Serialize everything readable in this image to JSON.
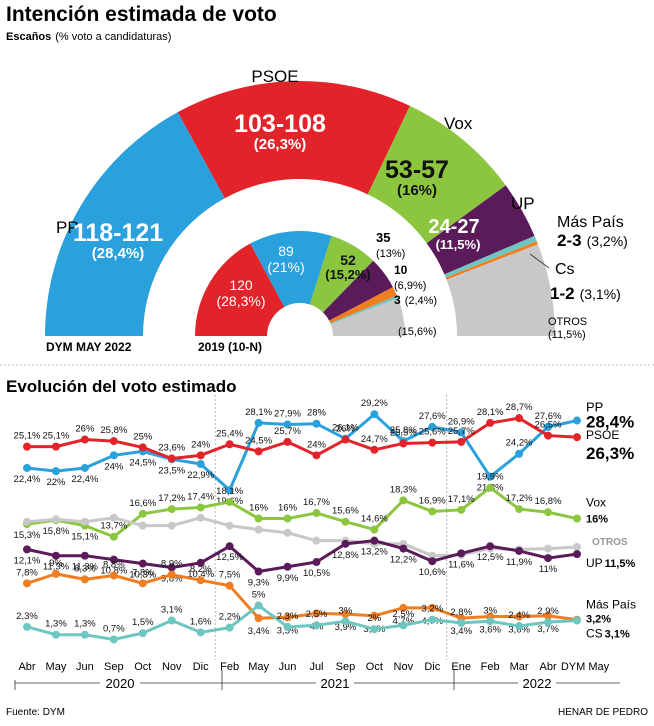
{
  "header": {
    "title": "Intención estimada de voto",
    "subtitle_bold": "Escaños",
    "subtitle_rest": "(% voto a candidaturas)"
  },
  "colors": {
    "PP": "#2aa0dc",
    "PSOE": "#e3232a",
    "Vox": "#8cc63f",
    "UP": "#5b1a5a",
    "MasPais": "#6ec6c1",
    "Cs": "#ef7d22",
    "OTROS": "#c8c8c8"
  },
  "chart_data": [
    {
      "type": "pie",
      "title": "DYM MAY 2022",
      "subtitle": "Escaños (% voto a candidaturas)",
      "series": [
        {
          "party": "PP",
          "seats_label": "118-121",
          "seats_mid": 119.5,
          "pct_label": "(28,4%)",
          "name_label": "PP"
        },
        {
          "party": "PSOE",
          "seats_label": "103-108",
          "seats_mid": 105.5,
          "pct_label": "(26,3%)",
          "name_label": "PSOE"
        },
        {
          "party": "Vox",
          "seats_label": "53-57",
          "seats_mid": 55,
          "pct_label": "(16%)",
          "name_label": "Vox"
        },
        {
          "party": "UP",
          "seats_label": "24-27",
          "seats_mid": 25.5,
          "pct_label": "(11,5%)",
          "name_label": "UP"
        },
        {
          "party": "MasPais",
          "seats_label": "2-3",
          "seats_mid": 2.5,
          "pct_label": "(3,2%)",
          "name_label": "Más País"
        },
        {
          "party": "Cs",
          "seats_label": "1-2",
          "seats_mid": 1.5,
          "pct_label": "(3,1%)",
          "name_label": "Cs"
        },
        {
          "party": "OTROS",
          "seats_label": "",
          "seats_mid": 41,
          "pct_label": "(11,5%)",
          "name_label": "OTROS"
        }
      ]
    },
    {
      "type": "pie",
      "title": "2019 (10-N)",
      "series": [
        {
          "party": "PSOE",
          "seats_label": "120",
          "seats": 120,
          "pct_label": "(28,3%)"
        },
        {
          "party": "PP",
          "seats_label": "89",
          "seats": 89,
          "pct_label": "(21%)"
        },
        {
          "party": "Vox",
          "seats_label": "52",
          "seats": 52,
          "pct_label": "(15,2%)"
        },
        {
          "party": "UP",
          "seats_label": "35",
          "seats": 35,
          "pct_label": "(13%)"
        },
        {
          "party": "Cs",
          "seats_label": "10",
          "seats": 10,
          "pct_label": "(6,9%)"
        },
        {
          "party": "MasPais",
          "seats_label": "3",
          "seats": 3,
          "pct_label": "(2,4%)"
        },
        {
          "party": "OTROS",
          "seats_label": "",
          "seats": 41,
          "pct_label": "(15,6%)"
        }
      ]
    },
    {
      "type": "line",
      "title": "Evolución del voto estimado",
      "ylim": [
        0,
        31
      ],
      "categories": [
        "Abr",
        "May",
        "Jun",
        "Sep",
        "Oct",
        "Nov",
        "Dic",
        "Feb",
        "May",
        "Jun",
        "Jul",
        "Sep",
        "Oct",
        "Nov",
        "Dic",
        "Ene",
        "Feb",
        "Mar",
        "Abr",
        "DYM May"
      ],
      "year_labels": [
        "2020",
        "2021",
        "2022"
      ],
      "series": [
        {
          "name": "PP",
          "end_label": "28,4%",
          "values": [
            22.4,
            22,
            22.4,
            24,
            24.5,
            23.5,
            22.9,
            19.6,
            28.1,
            27.9,
            28,
            26.1,
            29.2,
            25.8,
            27.6,
            26.9,
            21.3,
            24.2,
            27.6,
            28.4
          ],
          "labels": [
            "22,4%",
            "22%",
            "22,4%",
            "24%",
            "24,5%",
            "23,5%",
            "22,9%",
            "19,6%",
            "28,1%",
            "27,9%",
            "28%",
            "26,1%",
            "29,2%",
            "25,8%",
            "27,6%",
            "26,9%",
            "21,3%",
            "24,2%",
            "27,6%",
            ""
          ]
        },
        {
          "name": "PSOE",
          "end_label": "26,3%",
          "values": [
            25.1,
            25.1,
            26,
            25.8,
            25,
            23.6,
            24,
            25.4,
            24.5,
            25.7,
            24,
            26,
            24.7,
            25.5,
            25.6,
            25.7,
            28.1,
            28.7,
            26.5,
            26.3
          ],
          "labels": [
            "25,1%",
            "25,1%",
            "26%",
            "25,8%",
            "25%",
            "23,6%",
            "24%",
            "25,4%",
            "24,5%",
            "25,7%",
            "24%",
            "26%",
            "24,7%",
            "25,5%",
            "25,6%",
            "25,7%",
            "28,1%",
            "28,7%",
            "26,5%",
            ""
          ]
        },
        {
          "name": "Vox",
          "end_label": "16%",
          "values": [
            15.3,
            15.8,
            15.1,
            13.7,
            16.6,
            17.2,
            17.4,
            18.1,
            16,
            16,
            16.7,
            15.6,
            14.6,
            18.3,
            16.9,
            17.1,
            19.9,
            17.2,
            16.8,
            16
          ],
          "labels": [
            "15,3%",
            "15,8%",
            "15,1%",
            "13,7%",
            "16,6%",
            "17,2%",
            "17,4%",
            "18,1%",
            "16%",
            "16%",
            "16,7%",
            "15,6%",
            "14,6%",
            "18,3%",
            "16,9%",
            "17,1%",
            "19,9%",
            "17,2%",
            "16,8%",
            ""
          ]
        },
        {
          "name": "OTROS",
          "end_label": "OTROS",
          "values": [
            15.6,
            15.9,
            15.6,
            16.1,
            15.1,
            15.1,
            16.1,
            15.1,
            14.6,
            14.2,
            13.2,
            13.2,
            12.8,
            12.8,
            11.3,
            11.4,
            12.2,
            12.1,
            12.2,
            12.4
          ],
          "labels": []
        },
        {
          "name": "UP",
          "end_label": "11,5%",
          "values": [
            12.1,
            11.3,
            11.3,
            10.8,
            10.3,
            9.8,
            10.4,
            12.5,
            9.3,
            9.9,
            10.5,
            12.8,
            13.2,
            12.2,
            10.6,
            11.6,
            12.5,
            11.9,
            11,
            11.5
          ],
          "labels": [
            "12,1%",
            "11,3%",
            "11,3%",
            "10,8%",
            "10,3%",
            "9,8%",
            "10,4%",
            "12,5%",
            "9,3%",
            "9,9%",
            "10,5%",
            "12,8%",
            "13,2%",
            "12,2%",
            "10,6%",
            "11,6%",
            "12,5%",
            "11,9%",
            "11%",
            ""
          ]
        },
        {
          "name": "Más País",
          "end_label": "3,2%",
          "values": [
            7.8,
            9,
            8.3,
            8.8,
            7.8,
            8.9,
            8.2,
            7.5,
            3.4,
            3.5,
            4,
            3.9,
            3.7,
            4.7,
            4.7,
            3.4,
            3.6,
            3.6,
            3.7,
            3.2
          ],
          "labels": [
            "7,8%",
            "9%",
            "8,3%",
            "8,8%",
            "7,8%",
            "8,9%",
            "8,2%",
            "7,5%",
            "3,4%",
            "3,5%",
            "4%",
            "3,9%",
            "3,7%",
            "4,7%",
            "4,7%",
            "3,4%",
            "3,6%",
            "3,6%",
            "3,7%",
            ""
          ]
        },
        {
          "name": "Cs",
          "end_label": "3,1%",
          "values": [
            2.3,
            1.3,
            1.3,
            0.7,
            1.5,
            3.1,
            1.6,
            2.2,
            5,
            2.3,
            2.5,
            3,
            2,
            2.5,
            3.2,
            2.8,
            3,
            2.4,
            2.9,
            3.1
          ],
          "labels": [
            "2,3%",
            "1,3%",
            "1,3%",
            "0,7%",
            "1,5%",
            "3,1%",
            "1,6%",
            "2,2%",
            "5%",
            "2,3%",
            "2,5%",
            "3%",
            "2%",
            "2,5%",
            "3,2%",
            "2,8%",
            "3%",
            "2,4%",
            "2,9%",
            ""
          ]
        }
      ]
    }
  ],
  "footer": {
    "source": "Fuente: DYM",
    "author": "HENAR DE PEDRO"
  }
}
